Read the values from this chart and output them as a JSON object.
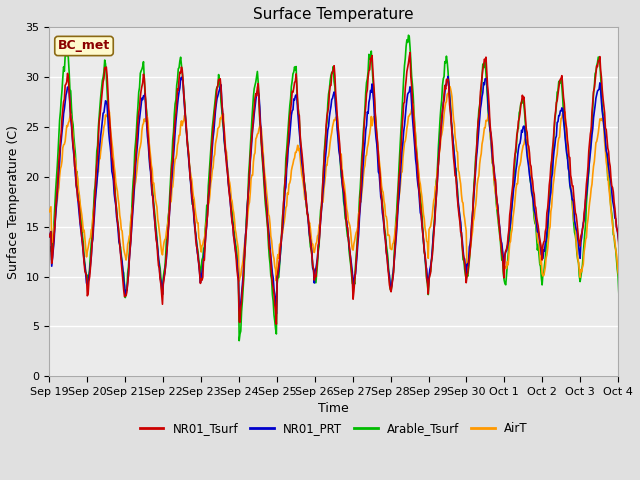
{
  "title": "Surface Temperature",
  "ylabel": "Surface Temperature (C)",
  "xlabel": "Time",
  "ylim": [
    0,
    35
  ],
  "yticks": [
    0,
    5,
    10,
    15,
    20,
    25,
    30,
    35
  ],
  "annotation_text": "BC_met",
  "annotation_bg": "#FFFACD",
  "annotation_border": "#8B4513",
  "series": {
    "NR01_Tsurf": {
      "color": "#CC0000",
      "lw": 1.2
    },
    "NR01_PRT": {
      "color": "#0000CC",
      "lw": 1.2
    },
    "Arable_Tsurf": {
      "color": "#00BB00",
      "lw": 1.2
    },
    "AirT": {
      "color": "#FF9900",
      "lw": 1.2
    }
  },
  "background_color": "#E0E0E0",
  "plot_bg": "#EBEBEB",
  "grid_color": "#FFFFFF",
  "xticklabels": [
    "Sep 19",
    "Sep 20",
    "Sep 21",
    "Sep 22",
    "Sep 23",
    "Sep 24",
    "Sep 25",
    "Sep 26",
    "Sep 27",
    "Sep 28",
    "Sep 29",
    "Sep 30",
    "Oct 1",
    "Oct 2",
    "Oct 3",
    "Oct 4"
  ],
  "n_days": 16,
  "pts_per_day": 48
}
